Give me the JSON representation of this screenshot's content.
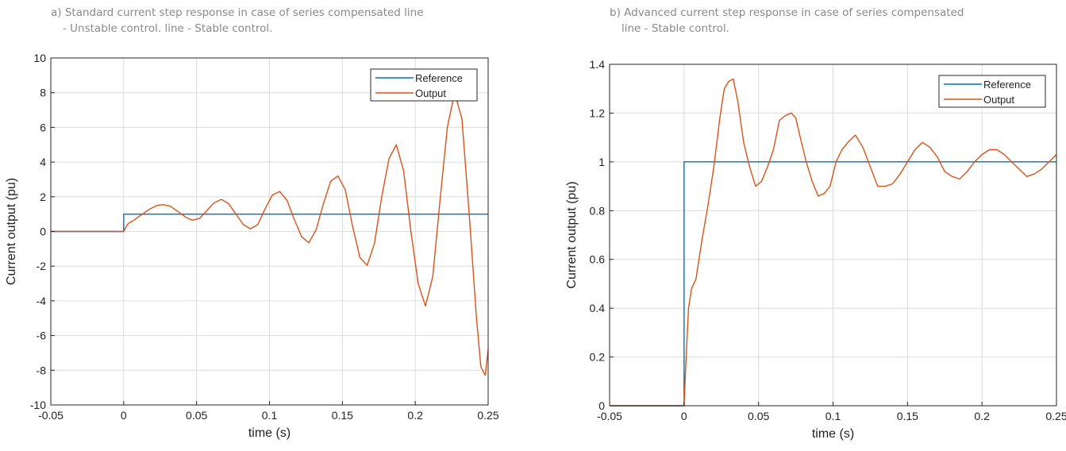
{
  "chart_data": [
    {
      "type": "line",
      "title": "a) Standard current step response in case of series compensated line",
      "subtitle": "- Unstable control. line - Stable control.",
      "xlabel": "time (s)",
      "ylabel": "Current output (pu)",
      "xlim": [
        -0.05,
        0.25
      ],
      "ylim": [
        -10,
        10
      ],
      "xticks": [
        "-0.05",
        "0",
        "0.05",
        "0.1",
        "0.15",
        "0.2",
        "0.25"
      ],
      "yticks": [
        "-10",
        "-8",
        "-6",
        "-4",
        "-2",
        "0",
        "2",
        "4",
        "6",
        "8",
        "10"
      ],
      "grid": true,
      "legend_position": "top-right",
      "series": [
        {
          "name": "Reference",
          "color": "#0072BD",
          "x": [
            -0.05,
            0,
            0,
            0.25
          ],
          "y": [
            0,
            0,
            1,
            1
          ]
        },
        {
          "name": "Output",
          "color": "#D95319",
          "x": [
            -0.05,
            0,
            0.003,
            0.007,
            0.012,
            0.018,
            0.023,
            0.027,
            0.032,
            0.038,
            0.043,
            0.047,
            0.052,
            0.057,
            0.062,
            0.067,
            0.072,
            0.077,
            0.082,
            0.087,
            0.092,
            0.097,
            0.102,
            0.107,
            0.112,
            0.117,
            0.122,
            0.127,
            0.132,
            0.137,
            0.142,
            0.147,
            0.152,
            0.157,
            0.162,
            0.167,
            0.172,
            0.177,
            0.182,
            0.187,
            0.192,
            0.197,
            0.202,
            0.207,
            0.212,
            0.217,
            0.222,
            0.227,
            0.232,
            0.237,
            0.242,
            0.245,
            0.248,
            0.25
          ],
          "y": [
            0,
            0,
            0.45,
            0.65,
            0.95,
            1.3,
            1.5,
            1.55,
            1.45,
            1.1,
            0.8,
            0.65,
            0.75,
            1.2,
            1.65,
            1.85,
            1.6,
            1.0,
            0.4,
            0.15,
            0.4,
            1.3,
            2.1,
            2.3,
            1.8,
            0.7,
            -0.3,
            -0.65,
            0.1,
            1.6,
            2.9,
            3.2,
            2.4,
            0.3,
            -1.5,
            -1.95,
            -0.7,
            2.0,
            4.2,
            5.0,
            3.5,
            0.0,
            -3.0,
            -4.3,
            -2.6,
            1.8,
            6.0,
            8.0,
            6.5,
            1.0,
            -5.0,
            -7.8,
            -8.3,
            -6.8
          ]
        }
      ]
    },
    {
      "type": "line",
      "title": "b) Advanced current step response in case of series compensated",
      "subtitle": "line - Stable control.",
      "xlabel": "time (s)",
      "ylabel": "Current output (pu)",
      "xlim": [
        -0.05,
        0.25
      ],
      "ylim": [
        0,
        1.4
      ],
      "xticks": [
        "-0.05",
        "0",
        "0.05",
        "0.1",
        "0.15",
        "0.2",
        "0.25"
      ],
      "yticks": [
        "0",
        "0.2",
        "0.4",
        "0.6",
        "0.8",
        "1",
        "1.2",
        "1.4"
      ],
      "grid": true,
      "legend_position": "top-right",
      "series": [
        {
          "name": "Reference",
          "color": "#0072BD",
          "x": [
            -0.05,
            0,
            0,
            0.25
          ],
          "y": [
            0,
            0,
            1,
            1
          ]
        },
        {
          "name": "Output",
          "color": "#D95319",
          "x": [
            -0.05,
            0,
            0.001,
            0.003,
            0.005,
            0.008,
            0.012,
            0.016,
            0.02,
            0.024,
            0.027,
            0.03,
            0.033,
            0.036,
            0.04,
            0.044,
            0.048,
            0.052,
            0.056,
            0.06,
            0.064,
            0.068,
            0.072,
            0.075,
            0.078,
            0.082,
            0.086,
            0.09,
            0.094,
            0.098,
            0.102,
            0.106,
            0.11,
            0.115,
            0.12,
            0.125,
            0.13,
            0.135,
            0.14,
            0.145,
            0.15,
            0.155,
            0.16,
            0.165,
            0.17,
            0.175,
            0.18,
            0.185,
            0.19,
            0.195,
            0.2,
            0.205,
            0.21,
            0.215,
            0.22,
            0.225,
            0.23,
            0.235,
            0.24,
            0.245,
            0.25
          ],
          "y": [
            0,
            0,
            0.15,
            0.4,
            0.48,
            0.52,
            0.68,
            0.82,
            0.98,
            1.18,
            1.3,
            1.33,
            1.34,
            1.25,
            1.08,
            0.98,
            0.9,
            0.92,
            0.98,
            1.05,
            1.17,
            1.19,
            1.2,
            1.18,
            1.1,
            1.0,
            0.92,
            0.86,
            0.87,
            0.9,
            1.0,
            1.05,
            1.08,
            1.11,
            1.06,
            0.98,
            0.9,
            0.9,
            0.91,
            0.95,
            1.0,
            1.05,
            1.08,
            1.06,
            1.02,
            0.96,
            0.94,
            0.93,
            0.96,
            1.0,
            1.03,
            1.05,
            1.05,
            1.03,
            1.0,
            0.97,
            0.94,
            0.95,
            0.97,
            1.0,
            1.03
          ]
        }
      ]
    }
  ]
}
